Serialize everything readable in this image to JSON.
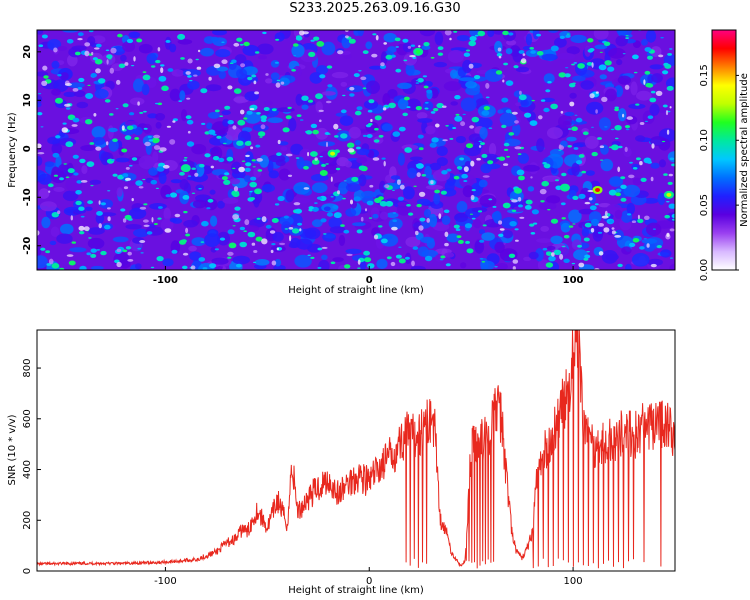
{
  "title": "S233.2025.263.09.16.G30",
  "chart_data": [
    {
      "type": "heatmap",
      "name": "spectrogram",
      "xlabel": "Height of straight line (km)",
      "ylabel": "Frequency (Hz)",
      "xlim": [
        -163,
        150
      ],
      "ylim": [
        -25,
        24.5
      ],
      "x_ticks": [
        -100,
        0,
        100
      ],
      "y_ticks": [
        -20,
        -10,
        0,
        10,
        20
      ],
      "colorbar": {
        "label": "Normalized spectral amplitude",
        "range": [
          0,
          0.185
        ],
        "ticks": [
          0.0,
          0.05,
          0.1,
          0.15
        ],
        "tick_labels": [
          "0.00",
          "0.05",
          "0.10",
          "0.15"
        ],
        "colors": [
          "#ffffff",
          "#d8b8ff",
          "#9a40f0",
          "#5a00e0",
          "#2020ff",
          "#0070ff",
          "#00c8ff",
          "#00e8a0",
          "#20ff20",
          "#c0ff00",
          "#ffff00",
          "#ff8000",
          "#ff0000",
          "#ff0080"
        ]
      },
      "background_level": 0.02,
      "peaks": [
        {
          "x": 112,
          "y": -8.5,
          "value": 0.17
        },
        {
          "x": -18,
          "y": -1,
          "value": 0.13
        },
        {
          "x": 147,
          "y": -9.5,
          "value": 0.13
        },
        {
          "x": 24,
          "y": 20,
          "value": 0.11
        },
        {
          "x": -90,
          "y": -4,
          "value": 0.1
        },
        {
          "x": 96,
          "y": -8,
          "value": 0.1
        }
      ]
    },
    {
      "type": "line",
      "name": "snr",
      "xlabel": "Height of straight line (km)",
      "ylabel": "SNR (10 * v/v)",
      "xlim": [
        -163,
        150
      ],
      "ylim": [
        0,
        950
      ],
      "x_ticks": [
        -100,
        0,
        100
      ],
      "y_ticks": [
        0,
        200,
        400,
        600,
        800
      ],
      "color": "#e8281e",
      "series": [
        {
          "x": [
            -163,
            -140,
            -120,
            -100,
            -85,
            -80,
            -75,
            -70,
            -65,
            -62,
            -60,
            -55,
            -50,
            -45,
            -40,
            -38,
            -35,
            -30,
            -25,
            -20,
            -15,
            -10,
            -5,
            0,
            5,
            10,
            15,
            18,
            20,
            25,
            28,
            30,
            32,
            35,
            38,
            40,
            43,
            45,
            47,
            50,
            55,
            60,
            62,
            65,
            67,
            70,
            72,
            75,
            78,
            80,
            82,
            85,
            88,
            90,
            93,
            95,
            98,
            100,
            102,
            105,
            110,
            115,
            120,
            125,
            130,
            135,
            140,
            145,
            148,
            150
          ],
          "y": [
            28,
            30,
            30,
            35,
            45,
            60,
            75,
            110,
            130,
            170,
            150,
            240,
            170,
            280,
            180,
            430,
            230,
            290,
            330,
            360,
            300,
            350,
            380,
            350,
            410,
            450,
            500,
            540,
            520,
            550,
            570,
            610,
            580,
            200,
            150,
            80,
            40,
            20,
            40,
            480,
            520,
            560,
            650,
            600,
            400,
            150,
            80,
            50,
            100,
            150,
            350,
            450,
            500,
            530,
            600,
            650,
            700,
            880,
            950,
            600,
            480,
            500,
            520,
            550,
            530,
            570,
            560,
            590,
            540,
            550
          ]
        }
      ]
    }
  ]
}
